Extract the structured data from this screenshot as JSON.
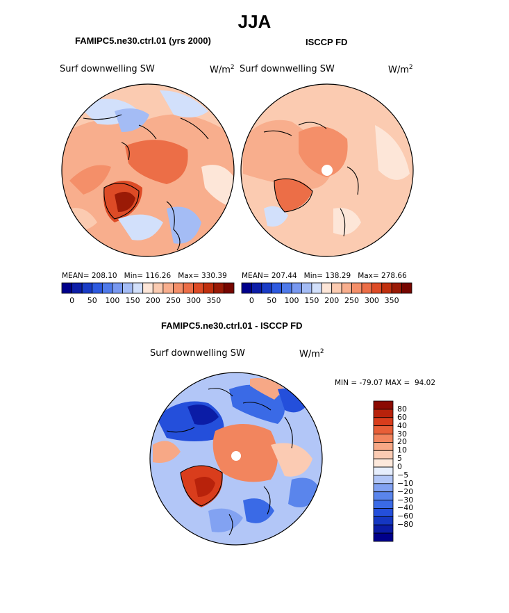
{
  "title": "JJA",
  "panels": {
    "model": {
      "title": "FAMIPC5.ne30.ctrl.01 (yrs 2000)",
      "variable": "Surf downwelling SW",
      "units": "W/m",
      "units_exp": "2",
      "stats": {
        "mean_label": "MEAN=",
        "mean": "208.10",
        "min_label": "Min=",
        "min": "116.26",
        "max_label": "Max=",
        "max": "330.39"
      }
    },
    "obs": {
      "title": "ISCCP FD",
      "variable": "Surf downwelling SW",
      "units": "W/m",
      "units_exp": "2",
      "stats": {
        "mean_label": "MEAN=",
        "mean": "207.44",
        "min_label": "Min=",
        "min": "138.29",
        "max_label": "Max=",
        "max": "278.66"
      }
    },
    "diff": {
      "title": "FAMIPC5.ne30.ctrl.01 - ISCCP FD",
      "variable": "Surf downwelling SW",
      "units": "W/m",
      "units_exp": "2",
      "stats": {
        "min_label": "MIN =",
        "min": "-79.07",
        "max_label": "MAX =",
        "max": "94.02"
      }
    }
  },
  "colorbar_abs": {
    "colors": [
      "#00008b",
      "#0d1ea8",
      "#1a3cc6",
      "#2e5ae0",
      "#4f7aea",
      "#7898f0",
      "#a4bcf5",
      "#d2e0fb",
      "#fde6d8",
      "#fbcbb1",
      "#f8ae8d",
      "#f48f69",
      "#ec6e47",
      "#dd4b26",
      "#c0300f",
      "#9a1a06",
      "#760600"
    ],
    "ticks": [
      "0",
      "50",
      "100",
      "150",
      "200",
      "250",
      "300",
      "350"
    ]
  },
  "colorbar_diff": {
    "colors": [
      "#00008b",
      "#0b1ca6",
      "#1537c2",
      "#244fdb",
      "#3a6ae6",
      "#5a85ec",
      "#82a2f2",
      "#b2c6f7",
      "#e6eefd",
      "#fde9dc",
      "#fbcbb3",
      "#f7a886",
      "#f2855e",
      "#e85f38",
      "#d93d1c",
      "#b8220b",
      "#8b0a02"
    ],
    "labels": [
      "80",
      "60",
      "40",
      "30",
      "20",
      "10",
      "5",
      "0",
      "−5",
      "−10",
      "−20",
      "−30",
      "−40",
      "−60",
      "−80"
    ]
  }
}
